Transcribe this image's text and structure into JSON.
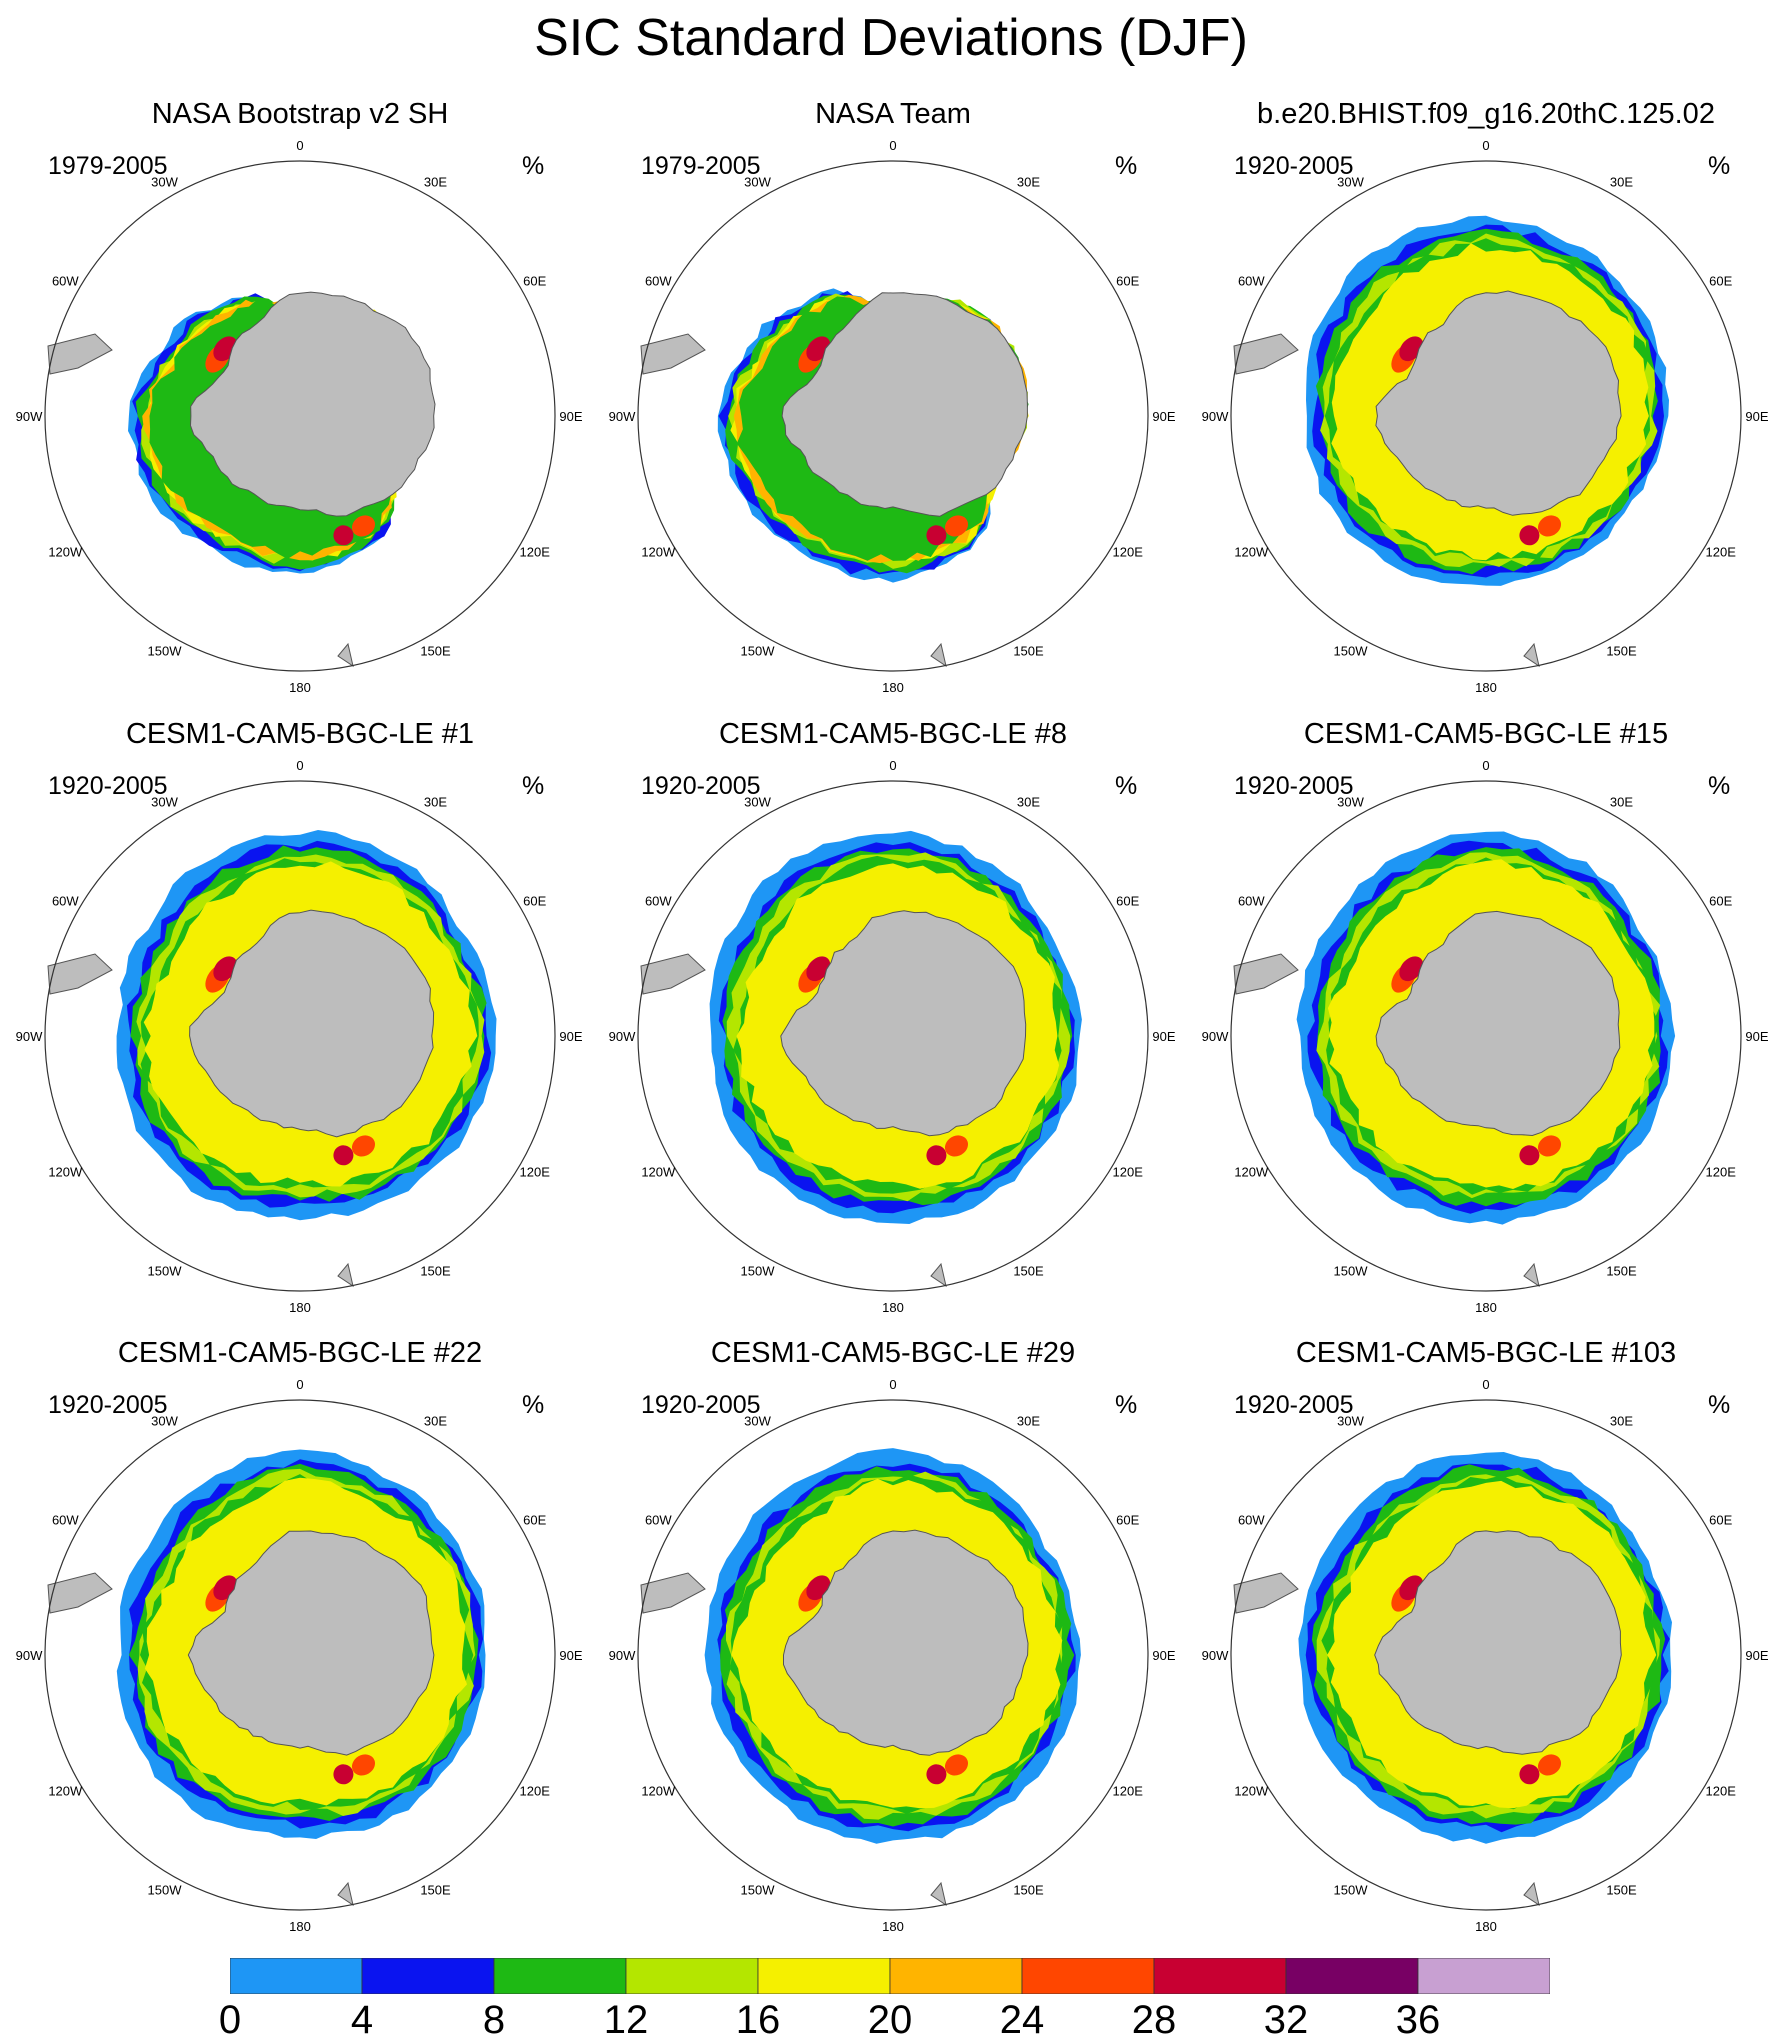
{
  "figure_title": "SIC Standard Deviations (DJF)",
  "units": "%",
  "longitude_labels": [
    "0",
    "30E",
    "60E",
    "90E",
    "120E",
    "150E",
    "180",
    "150W",
    "120W",
    "90W",
    "60W",
    "30W"
  ],
  "colors": {
    "land": "#bdbdbd",
    "bins": [
      "#1e96f5",
      "#0a14f0",
      "#1eb914",
      "#b4e600",
      "#f5f000",
      "#ffb400",
      "#ff4600",
      "#c80032",
      "#780064",
      "#c8a0d2"
    ]
  },
  "colorbar_labels": [
    "0",
    "4",
    "8",
    "12",
    "16",
    "20",
    "24",
    "28",
    "32",
    "36"
  ],
  "chart_data": [
    {
      "type": "heatmap",
      "title": "NASA Bootstrap v2 SH",
      "period": "1979-2005",
      "pattern": "observed",
      "extent_deg": [
        -72,
        -68,
        -67,
        -68,
        -70,
        -64,
        -62,
        -62,
        -60,
        -60,
        -63,
        -66
      ],
      "max_bin_value": 36
    },
    {
      "type": "heatmap",
      "title": "NASA Team",
      "period": "1979-2005",
      "pattern": "observed",
      "extent_deg": [
        -72,
        -67,
        -66,
        -67,
        -69,
        -63,
        -61,
        -61,
        -60,
        -59,
        -62,
        -65
      ],
      "max_bin_value": 36
    },
    {
      "type": "heatmap",
      "title": "b.e20.BHIST.f09_g16.20thC.125.02",
      "period": "1920-2005",
      "pattern": "model",
      "extent_deg": [
        -55,
        -56,
        -57,
        -58,
        -60,
        -60,
        -60,
        -59,
        -58,
        -58,
        -56,
        -55
      ],
      "max_bin_value": 32
    },
    {
      "type": "heatmap",
      "title": "CESM1-CAM5-BGC-LE #1",
      "period": "1920-2005",
      "pattern": "model",
      "extent_deg": [
        -54,
        -54,
        -56,
        -55,
        -56,
        -57,
        -58,
        -57,
        -57,
        -58,
        -57,
        -55
      ],
      "max_bin_value": 32
    },
    {
      "type": "heatmap",
      "title": "CESM1-CAM5-BGC-LE #8",
      "period": "1920-2005",
      "pattern": "model",
      "extent_deg": [
        -54,
        -55,
        -57,
        -57,
        -57,
        -57,
        -57,
        -57,
        -57,
        -58,
        -56,
        -54
      ],
      "max_bin_value": 32
    },
    {
      "type": "heatmap",
      "title": "CESM1-CAM5-BGC-LE #15",
      "period": "1920-2005",
      "pattern": "model",
      "extent_deg": [
        -54,
        -55,
        -57,
        -57,
        -57,
        -57,
        -57,
        -57,
        -57,
        -57,
        -56,
        -55
      ],
      "max_bin_value": 32
    },
    {
      "type": "heatmap",
      "title": "CESM1-CAM5-BGC-LE #22",
      "period": "1920-2005",
      "pattern": "model",
      "extent_deg": [
        -54,
        -55,
        -56,
        -57,
        -57,
        -57,
        -58,
        -57,
        -57,
        -58,
        -57,
        -55
      ],
      "max_bin_value": 32
    },
    {
      "type": "heatmap",
      "title": "CESM1-CAM5-BGC-LE #29",
      "period": "1920-2005",
      "pattern": "model",
      "extent_deg": [
        -54,
        -55,
        -57,
        -57,
        -57,
        -57,
        -57,
        -57,
        -57,
        -57,
        -56,
        -55
      ],
      "max_bin_value": 32
    },
    {
      "type": "heatmap",
      "title": "CESM1-CAM5-BGC-LE #103",
      "period": "1920-2005",
      "pattern": "model",
      "extent_deg": [
        -54,
        -55,
        -57,
        -57,
        -57,
        -57,
        -57,
        -57,
        -57,
        -57,
        -56,
        -55
      ],
      "max_bin_value": 32
    }
  ]
}
